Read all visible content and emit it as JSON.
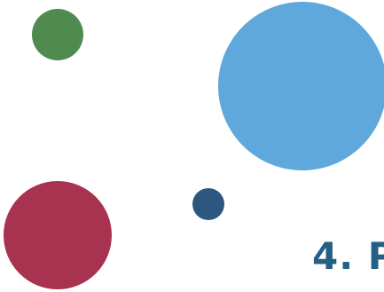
{
  "heading": {
    "text": "4. P",
    "color": "#255f86"
  },
  "circles": [
    {
      "name": "green",
      "color": "#4f8a4f"
    },
    {
      "name": "blue",
      "color": "#5fa8dc"
    },
    {
      "name": "navy",
      "color": "#2d577f"
    },
    {
      "name": "red",
      "color": "#a83350"
    }
  ]
}
